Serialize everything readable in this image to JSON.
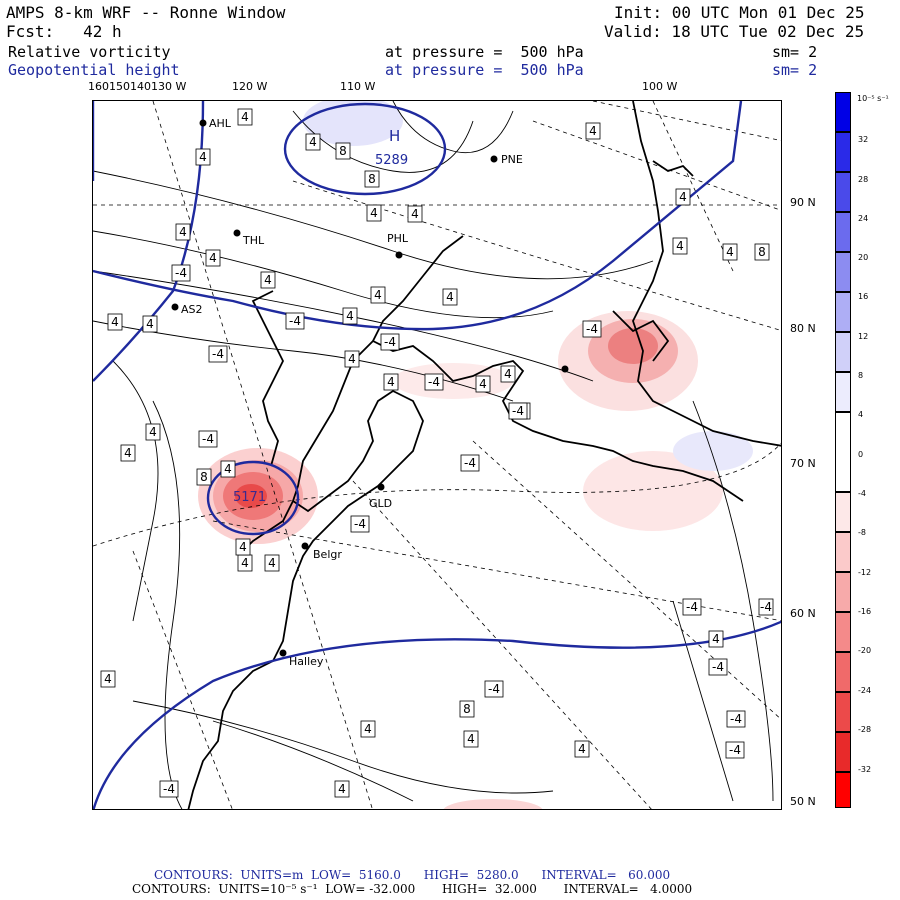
{
  "header": {
    "title": "AMPS 8-km WRF -- Ronne Window",
    "fcst": "Fcst:   42 h",
    "init": "Init: 00 UTC Mon 01 Dec 25",
    "valid": "Valid: 18 UTC Tue 02 Dec 25",
    "field1_name": "Relative vorticity",
    "field1_level": "at pressure =  500 hPa",
    "field1_smooth": "sm= 2",
    "field2_name": "Geopotential height",
    "field2_level": "at pressure =  500 hPa",
    "field2_smooth": "sm= 2"
  },
  "longitude_labels": [
    "160150140130 W",
    "120 W",
    "110 W",
    "100 W"
  ],
  "latitude_labels": [
    "90 N",
    "80 N",
    "70 N",
    "60 N",
    "50 N"
  ],
  "stations": [
    "AHL",
    "PNE",
    "THL",
    "PHL",
    "AS2",
    "GLD",
    "Belgr",
    "Halley"
  ],
  "height_labels": [
    "H",
    "5289",
    "5171"
  ],
  "vorticity_labels": [
    "4",
    "4",
    "4",
    "8",
    "8",
    "4",
    "4",
    "4",
    "-4",
    "4",
    "4",
    "4",
    "4",
    "-4",
    "4",
    "-4",
    "4",
    "4",
    "4",
    "4",
    "-4",
    "-4",
    "4",
    "4",
    "4",
    "-4",
    "4",
    "4",
    "-4",
    "8",
    "-4",
    "-4",
    "4",
    "-4",
    "-4",
    "4",
    "4",
    "4",
    "-4",
    "4",
    "4",
    "8",
    "-4",
    "-4",
    "4",
    "8",
    "4",
    "-4",
    "-4",
    "4",
    "4",
    "4",
    "4",
    "-4",
    "4",
    "-4"
  ],
  "colorbar": {
    "unit_label": "10⁻⁵ s⁻¹",
    "ticks": [
      "32",
      "28",
      "24",
      "20",
      "16",
      "12",
      "8",
      "4",
      "0",
      "-4",
      "-8",
      "-12",
      "-16",
      "-20",
      "-24",
      "-28",
      "-32"
    ],
    "colors": [
      "#0000e6",
      "#2a2ae8",
      "#4a4aea",
      "#6b6bee",
      "#8c8cf1",
      "#aeaef5",
      "#d0d0f9",
      "#ececfd",
      "#ffffff",
      "#ffffff",
      "#fde8e8",
      "#fbcaca",
      "#f7aaaa",
      "#f48a8a",
      "#f06a6a",
      "#ec4a4a",
      "#e82a2a",
      "#ff0000"
    ]
  },
  "footer": {
    "line1": "CONTOURS:  UNITS=m  LOW=  5160.0      HIGH=  5280.0      INTERVAL=   60.000",
    "line2": "CONTOURS:  UNITS=10⁻⁵ s⁻¹  LOW= -32.000       HIGH=  32.000       INTERVAL=   4.0000"
  }
}
